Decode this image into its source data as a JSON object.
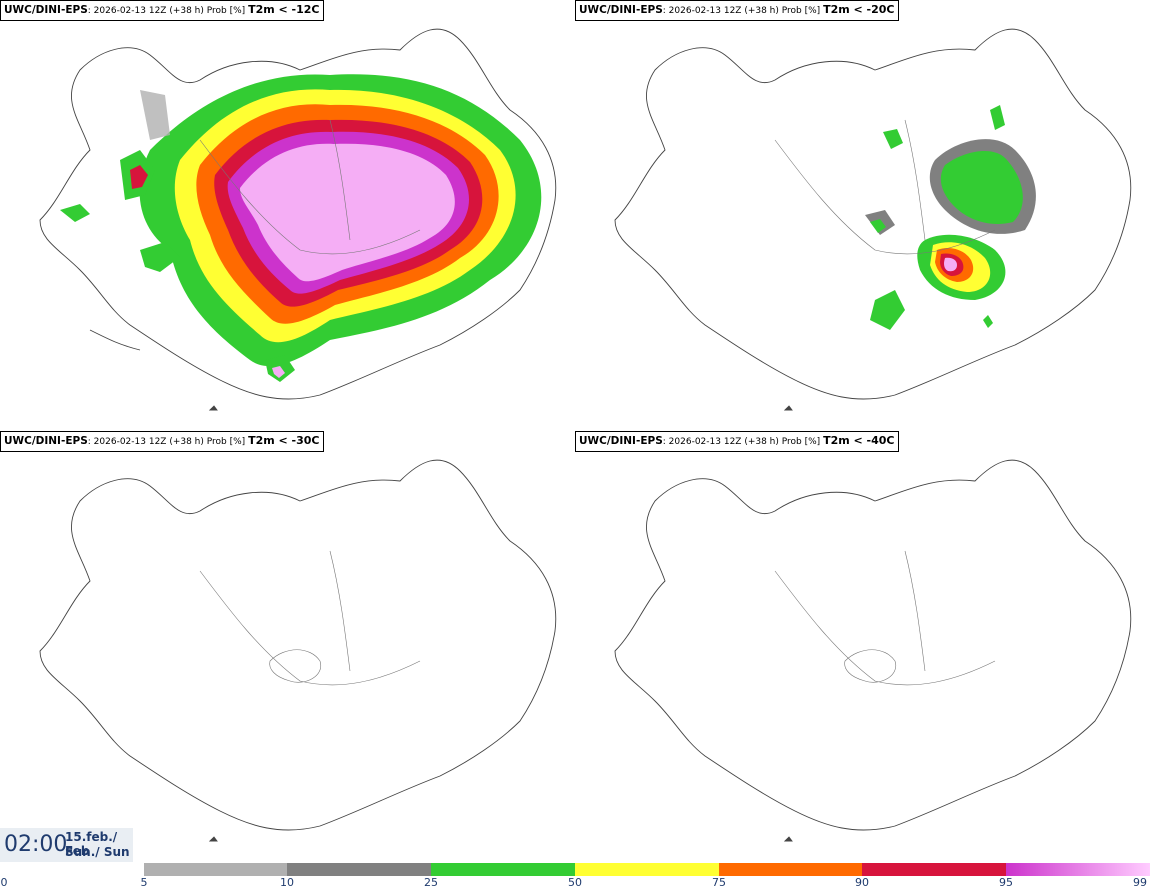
{
  "panels": [
    {
      "model": "UWC/DINI-EPS",
      "run": "2026-02-13 12Z (+38 h) Prob [%]",
      "threshold": "T2m < -12C"
    },
    {
      "model": "UWC/DINI-EPS",
      "run": "2026-02-13 12Z (+38 h) Prob [%]",
      "threshold": "T2m < -20C"
    },
    {
      "model": "UWC/DINI-EPS",
      "run": "2026-02-13 12Z (+38 h) Prob [%]",
      "threshold": "T2m < -30C"
    },
    {
      "model": "UWC/DINI-EPS",
      "run": "2026-02-13 12Z (+38 h) Prob [%]",
      "threshold": "T2m < -40C"
    }
  ],
  "valid_time": {
    "time": "02:00",
    "date_line": "15.feb./ Feb",
    "day_line": "Sun./ Sun"
  },
  "colorbar": {
    "ticks": [
      "0",
      "5",
      "10",
      "25",
      "50",
      "75",
      "90",
      "95",
      "99"
    ],
    "bins": [
      {
        "from": "5",
        "to": "10",
        "color": "#b0b0b0"
      },
      {
        "from": "10",
        "to": "25",
        "color": "#808080"
      },
      {
        "from": "25",
        "to": "50",
        "color": "#33cc33"
      },
      {
        "from": "50",
        "to": "75",
        "color": "#ffff33"
      },
      {
        "from": "75",
        "to": "90",
        "color": "#ff6a00"
      },
      {
        "from": "90",
        "to": "95",
        "color": "#d7143c"
      },
      {
        "from": "95",
        "to": "99",
        "color": "#cc33cc",
        "to_color": "#ffccff"
      }
    ]
  }
}
